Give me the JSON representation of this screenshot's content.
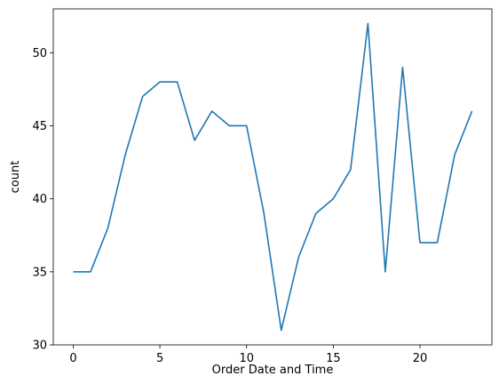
{
  "chart_data": {
    "type": "line",
    "title": "",
    "xlabel": "Order Date and Time",
    "ylabel": "count",
    "x": [
      0,
      1,
      2,
      3,
      4,
      5,
      6,
      7,
      8,
      9,
      10,
      11,
      12,
      13,
      14,
      15,
      16,
      17,
      18,
      19,
      20,
      21,
      22,
      23
    ],
    "series": [
      {
        "name": "",
        "values": [
          35,
          35,
          38,
          43,
          47,
          48,
          48,
          44,
          46,
          45,
          45,
          39,
          31,
          36,
          39,
          40,
          42,
          52,
          35,
          49,
          37,
          37,
          43,
          46
        ]
      }
    ],
    "xlim": [
      -1.15,
      24.15
    ],
    "ylim": [
      30.0,
      53.0
    ],
    "xticks": [
      0,
      5,
      10,
      15,
      20
    ],
    "xtick_labels": [
      "0",
      "5",
      "10",
      "15",
      "20"
    ],
    "yticks": [
      30,
      35,
      40,
      45,
      50
    ],
    "ytick_labels": [
      "30",
      "35",
      "40",
      "45",
      "50"
    ],
    "grid": false,
    "line_color": "#1f77b4"
  }
}
